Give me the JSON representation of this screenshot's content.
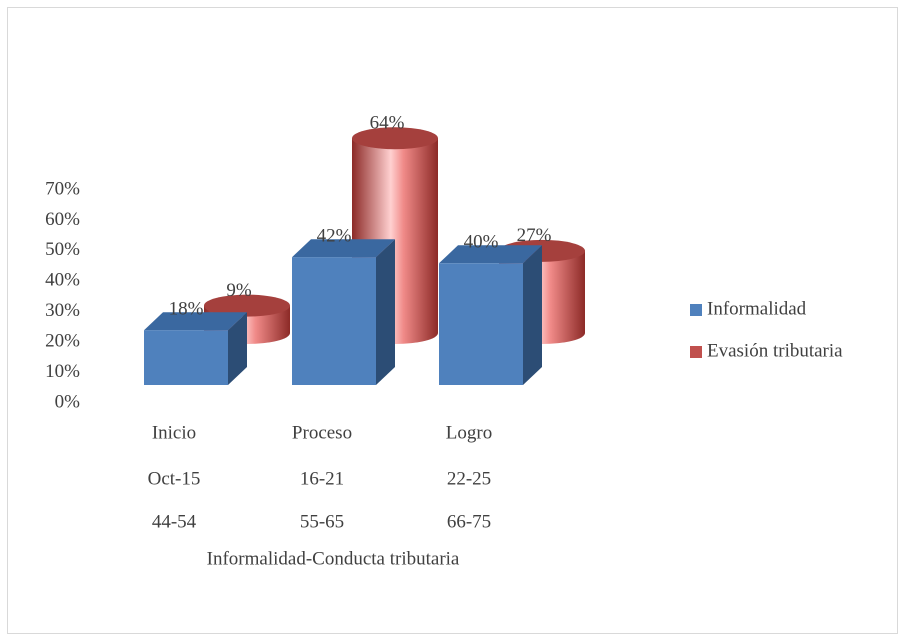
{
  "chart_data": {
    "type": "bar3d",
    "categories": [
      [
        "Inicio",
        "Oct-15",
        "44-54"
      ],
      [
        "Proceso",
        "16-21",
        "55-65"
      ],
      [
        "Logro",
        "22-25",
        "66-75"
      ]
    ],
    "x_label": "Informalidad-Conducta tributaria",
    "series": [
      {
        "name": "Informalidad",
        "color": "#4f81bd",
        "shape": "box",
        "values": [
          18,
          42,
          40
        ],
        "value_labels": [
          "18%",
          "42%",
          "40%"
        ]
      },
      {
        "name": "Evasión tributaria",
        "color": "#c0504d",
        "shape": "cylinder",
        "values": [
          9,
          64,
          27
        ],
        "value_labels": [
          "9%",
          "64%",
          "27%"
        ]
      }
    ],
    "ylim": [
      0,
      70
    ],
    "yticks": [
      {
        "value": 0,
        "label": "0%"
      },
      {
        "value": 10,
        "label": "10%"
      },
      {
        "value": 20,
        "label": "20%"
      },
      {
        "value": 30,
        "label": "30%"
      },
      {
        "value": 40,
        "label": "40%"
      },
      {
        "value": 50,
        "label": "50%"
      },
      {
        "value": 60,
        "label": "60%"
      },
      {
        "value": 70,
        "label": "70%"
      }
    ],
    "legend": "right",
    "grid": false
  }
}
